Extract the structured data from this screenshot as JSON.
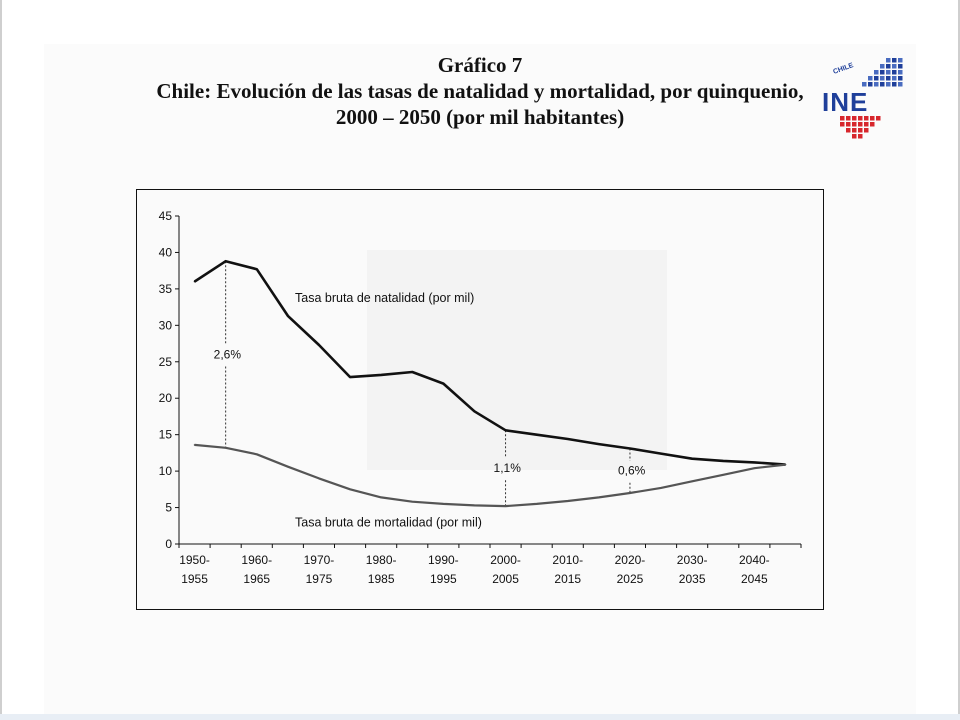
{
  "title": {
    "line1": "Gráfico 7",
    "line2": "Chile: Evolución de las tasas de natalidad y mortalidad, por quinquenio,",
    "line3": "2000 – 2050 (por mil habitantes)"
  },
  "logo": {
    "text": "INE",
    "small_text": "CHILE",
    "colors": {
      "blue": "#1f3f9a",
      "red": "#d7262c",
      "grid_blue": "#4a6cc0"
    }
  },
  "chart_data": {
    "type": "line",
    "y_ticks": [
      "0",
      "5",
      "10",
      "15",
      "20",
      "25",
      "30",
      "35",
      "40",
      "45"
    ],
    "ylim": [
      0,
      45
    ],
    "x_ticks": [
      {
        "top": "1950-",
        "bottom": "1955"
      },
      {
        "top": "1960-",
        "bottom": "1965"
      },
      {
        "top": "1970-",
        "bottom": "1975"
      },
      {
        "top": "1980-",
        "bottom": "1985"
      },
      {
        "top": "1990-",
        "bottom": "1995"
      },
      {
        "top": "2000-",
        "bottom": "2005"
      },
      {
        "top": "2010-",
        "bottom": "2015"
      },
      {
        "top": "2020-",
        "bottom": "2025"
      },
      {
        "top": "2030-",
        "bottom": "2035"
      },
      {
        "top": "2040-",
        "bottom": "2045"
      }
    ],
    "x": [
      "1950-1955",
      "1955-1960",
      "1960-1965",
      "1965-1970",
      "1970-1975",
      "1975-1980",
      "1980-1985",
      "1985-1990",
      "1990-1995",
      "1995-2000",
      "2000-2005",
      "2005-2010",
      "2010-2015",
      "2015-2020",
      "2020-2025",
      "2025-2030",
      "2030-2035",
      "2035-2040",
      "2040-2045",
      "2045-2050"
    ],
    "series": [
      {
        "name": "Tasa bruta de natalidad (por mil)",
        "values": [
          36.0,
          38.8,
          37.7,
          31.3,
          27.3,
          22.9,
          23.2,
          23.6,
          22.0,
          18.2,
          15.6,
          15.0,
          14.4,
          13.7,
          13.1,
          12.4,
          11.7,
          11.4,
          11.2,
          10.9
        ],
        "color": "#111111"
      },
      {
        "name": "Tasa bruta de mortalidad (por mil)",
        "values": [
          13.6,
          13.2,
          12.3,
          10.6,
          9.0,
          7.5,
          6.4,
          5.8,
          5.5,
          5.3,
          5.2,
          5.5,
          5.9,
          6.4,
          7.0,
          7.7,
          8.6,
          9.5,
          10.4,
          10.9
        ],
        "color": "#555555"
      }
    ],
    "annotations": [
      {
        "text": "2,6%",
        "x_index": 1,
        "top_value": 38.8,
        "bottom_value": 13.2
      },
      {
        "text": "1,1%",
        "x_index": 10,
        "top_value": 15.6,
        "bottom_value": 5.2
      },
      {
        "text": "0,6%",
        "x_index": 14,
        "top_value": 13.1,
        "bottom_value": 7.0
      }
    ],
    "grid": false,
    "legend": "inline labels"
  }
}
